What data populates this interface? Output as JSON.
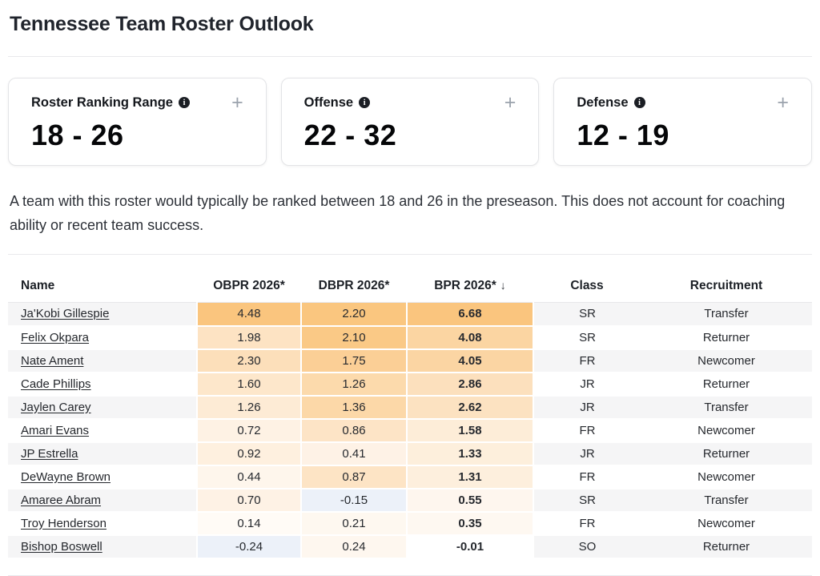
{
  "page": {
    "title": "Tennessee Team Roster Outlook"
  },
  "icons": {
    "info": "i",
    "expand": "+",
    "sort_desc": "↓"
  },
  "colors": {
    "heat_max_orange": "#fac57e",
    "heat_negative_blue": "#ecf1f9",
    "row_stripe": "#f5f5f6",
    "divider": "#e9e9ec"
  },
  "summary_cards": [
    {
      "label": "Roster Ranking Range",
      "value": "18 - 26"
    },
    {
      "label": "Offense",
      "value": "22 - 32"
    },
    {
      "label": "Defense",
      "value": "12 - 19"
    }
  ],
  "description": "A team with this roster would typically be ranked between 18 and 26 in the preseason. This does not account for coaching ability or recent team success.",
  "table": {
    "sort_indicator": "↓",
    "sorted_column": "BPR 2026*",
    "columns": [
      {
        "label": "Name"
      },
      {
        "label": "OBPR 2026*"
      },
      {
        "label": "DBPR 2026*"
      },
      {
        "label": "BPR 2026*"
      },
      {
        "label": "Class"
      },
      {
        "label": "Recruitment"
      }
    ],
    "rows": [
      {
        "name": "Ja'Kobi Gillespie",
        "obpr": "4.48",
        "dbpr": "2.20",
        "bpr": "6.68",
        "class": "SR",
        "recruitment": "Transfer",
        "obpr_bg": "#fac57e",
        "dbpr_bg": "#fac67f",
        "bpr_bg": "#fac57e"
      },
      {
        "name": "Felix Okpara",
        "obpr": "1.98",
        "dbpr": "2.10",
        "bpr": "4.08",
        "class": "SR",
        "recruitment": "Returner",
        "obpr_bg": "#fde3c3",
        "dbpr_bg": "#fac986",
        "bpr_bg": "#fbd5a2"
      },
      {
        "name": "Nate Ament",
        "obpr": "2.30",
        "dbpr": "1.75",
        "bpr": "4.05",
        "class": "FR",
        "recruitment": "Newcomer",
        "obpr_bg": "#fcdfba",
        "dbpr_bg": "#fbcf96",
        "bpr_bg": "#fbd5a3"
      },
      {
        "name": "Cade Phillips",
        "obpr": "1.60",
        "dbpr": "1.26",
        "bpr": "2.86",
        "class": "JR",
        "recruitment": "Returner",
        "obpr_bg": "#fde7cb",
        "dbpr_bg": "#fcdaac",
        "bpr_bg": "#fce0bd"
      },
      {
        "name": "Jaylen Carey",
        "obpr": "1.26",
        "dbpr": "1.36",
        "bpr": "2.62",
        "class": "JR",
        "recruitment": "Transfer",
        "obpr_bg": "#fdebd5",
        "dbpr_bg": "#fcd8a8",
        "bpr_bg": "#fce2c1"
      },
      {
        "name": "Amari Evans",
        "obpr": "0.72",
        "dbpr": "0.86",
        "bpr": "1.58",
        "class": "FR",
        "recruitment": "Newcomer",
        "obpr_bg": "#fef2e4",
        "dbpr_bg": "#fde4c6",
        "bpr_bg": "#fdedd8"
      },
      {
        "name": "JP Estrella",
        "obpr": "0.92",
        "dbpr": "0.41",
        "bpr": "1.33",
        "class": "JR",
        "recruitment": "Returner",
        "obpr_bg": "#fef0df",
        "dbpr_bg": "#fef2e6",
        "bpr_bg": "#fdefdc"
      },
      {
        "name": "DeWayne Brown",
        "obpr": "0.44",
        "dbpr": "0.87",
        "bpr": "1.31",
        "class": "FR",
        "recruitment": "Newcomer",
        "obpr_bg": "#fef6ec",
        "dbpr_bg": "#fde4c5",
        "bpr_bg": "#fdefdd"
      },
      {
        "name": "Amaree Abram",
        "obpr": "0.70",
        "dbpr": "-0.15",
        "bpr": "0.55",
        "class": "SR",
        "recruitment": "Transfer",
        "obpr_bg": "#fef2e5",
        "dbpr_bg": "#ecf1f9",
        "bpr_bg": "#fef6ee"
      },
      {
        "name": "Troy Henderson",
        "obpr": "0.14",
        "dbpr": "0.21",
        "bpr": "0.35",
        "class": "FR",
        "recruitment": "Newcomer",
        "obpr_bg": "#fffbf6",
        "dbpr_bg": "#fef8f0",
        "bpr_bg": "#fef8f1"
      },
      {
        "name": "Bishop Boswell",
        "obpr": "-0.24",
        "dbpr": "0.24",
        "bpr": "-0.01",
        "class": "SO",
        "recruitment": "Returner",
        "obpr_bg": "#ecf1f9",
        "dbpr_bg": "#fef7ef",
        "bpr_bg": "#ffffff"
      }
    ]
  }
}
